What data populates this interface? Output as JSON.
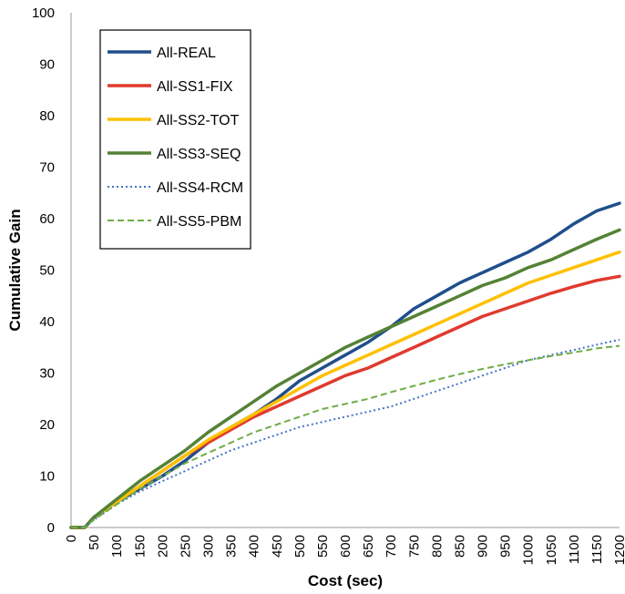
{
  "chart_data": {
    "type": "line",
    "title": "",
    "xlabel": "Cost (sec)",
    "ylabel": "Cumulative Gain",
    "xlim": [
      0,
      1200
    ],
    "ylim": [
      0,
      100
    ],
    "x_ticks": [
      0,
      50,
      100,
      150,
      200,
      250,
      300,
      350,
      400,
      450,
      500,
      550,
      600,
      650,
      700,
      750,
      800,
      850,
      900,
      950,
      1000,
      1050,
      1100,
      1150,
      1200
    ],
    "y_ticks": [
      0,
      10,
      20,
      30,
      40,
      50,
      60,
      70,
      80,
      90,
      100
    ],
    "grid": false,
    "legend_position": "top-left",
    "x": [
      0,
      30,
      50,
      100,
      150,
      200,
      250,
      300,
      350,
      400,
      450,
      500,
      550,
      600,
      650,
      700,
      750,
      800,
      850,
      900,
      950,
      1000,
      1050,
      1100,
      1150,
      1200
    ],
    "series": [
      {
        "name": "All-REAL",
        "color": "#1F4E8C",
        "style": "solid",
        "values": [
          0,
          0,
          2,
          5,
          7.5,
          10,
          13,
          16.5,
          19.5,
          22,
          25,
          28.5,
          31,
          33.5,
          36,
          39,
          42.5,
          45,
          47.5,
          49.5,
          51.5,
          53.5,
          56,
          59,
          61.5,
          63
        ]
      },
      {
        "name": "All-SS1-FIX",
        "color": "#E03A2E",
        "style": "solid",
        "values": [
          0,
          0,
          2,
          5,
          8,
          11,
          14,
          16.5,
          19,
          21.5,
          23.5,
          25.5,
          27.5,
          29.5,
          31,
          33,
          35,
          37,
          39,
          41,
          42.5,
          44,
          45.5,
          46.8,
          48,
          48.8
        ]
      },
      {
        "name": "All-SS2-TOT",
        "color": "#FFC000",
        "style": "solid",
        "values": [
          0,
          0,
          2,
          5,
          8,
          11,
          14,
          17,
          19.5,
          22,
          24.5,
          27,
          29.5,
          31.5,
          33.5,
          35.5,
          37.5,
          39.5,
          41.5,
          43.5,
          45.5,
          47.5,
          49,
          50.5,
          52,
          53.5
        ]
      },
      {
        "name": "All-SS3-SEQ",
        "color": "#548235",
        "style": "solid",
        "values": [
          0,
          0,
          2,
          5.5,
          9,
          12,
          15,
          18.5,
          21.5,
          24.5,
          27.5,
          30,
          32.5,
          35,
          37,
          39,
          41,
          43,
          45,
          47,
          48.5,
          50.5,
          52,
          54,
          56,
          57.8
        ]
      },
      {
        "name": "All-SS4-RCM",
        "color": "#4472C4",
        "style": "dotted",
        "values": [
          0,
          0,
          1.5,
          4.5,
          7,
          9,
          11,
          13,
          15,
          16.5,
          18,
          19.5,
          20.5,
          21.5,
          22.5,
          23.5,
          25,
          26.5,
          28,
          29.5,
          31,
          32.5,
          33.5,
          34.5,
          35.5,
          36.5
        ]
      },
      {
        "name": "All-SS5-PBM",
        "color": "#70AD47",
        "style": "dashed",
        "values": [
          0,
          0,
          1.5,
          4.5,
          7.5,
          10,
          12.5,
          14.5,
          16.5,
          18.5,
          20,
          21.5,
          23,
          24,
          25,
          26.3,
          27.5,
          28.7,
          29.8,
          30.8,
          31.7,
          32.5,
          33.3,
          34,
          34.8,
          35.3
        ]
      }
    ]
  }
}
